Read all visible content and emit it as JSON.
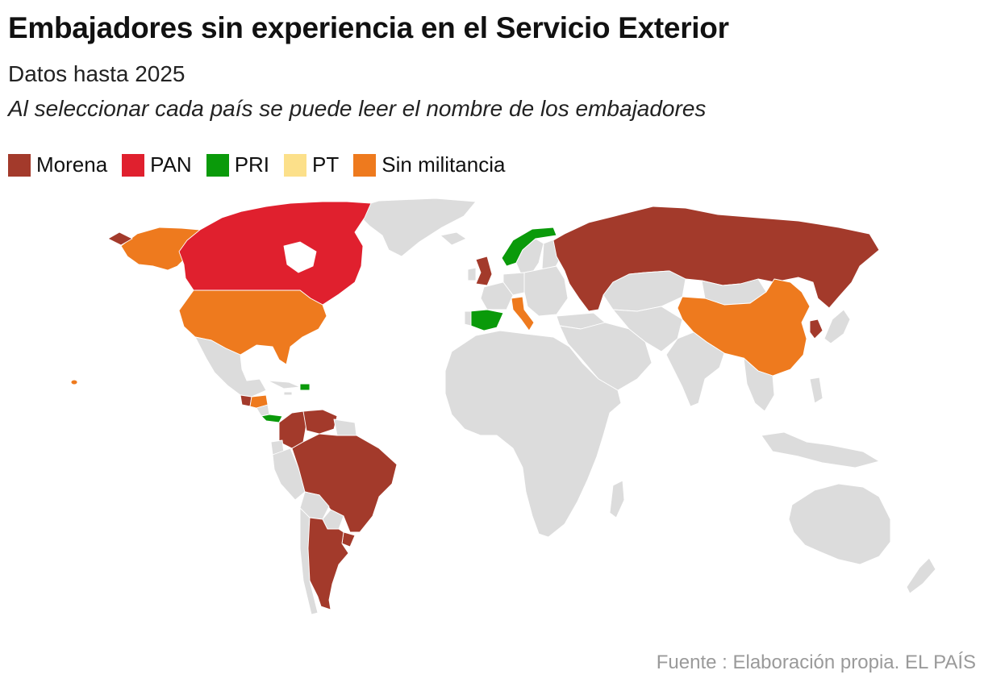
{
  "header": {
    "title": "Embajadores sin experiencia en el Servicio Exterior",
    "subtitle": "Datos hasta 2025",
    "note": "Al seleccionar cada país se puede leer el nombre de los embajadores"
  },
  "legend": [
    {
      "label": "Morena",
      "color": "#a33a2b"
    },
    {
      "label": "PAN",
      "color": "#e0202e"
    },
    {
      "label": "PRI",
      "color": "#0a9a0a"
    },
    {
      "label": "PT",
      "color": "#fce08a"
    },
    {
      "label": "Sin militancia",
      "color": "#ee7a1e"
    }
  ],
  "colors": {
    "morena": "#a33a2b",
    "pan": "#e0202e",
    "pri": "#0a9a0a",
    "pt": "#fce08a",
    "sin_militancia": "#ee7a1e",
    "no_data": "#dcdcdc"
  },
  "footer": {
    "source": "Fuente : Elaboración propia. EL PAÍS"
  }
}
